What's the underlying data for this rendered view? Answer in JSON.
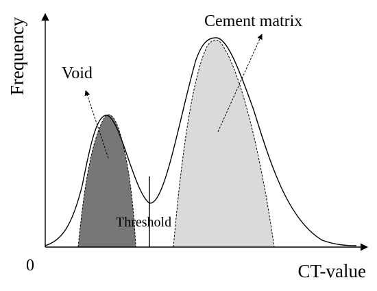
{
  "labels": {
    "y_axis": "Frequency",
    "x_axis": "CT-value",
    "origin": "0",
    "void": "Void",
    "cement": "Cement matrix",
    "threshold": "Threshold"
  },
  "colors": {
    "void_fill": "#777777",
    "cement_fill": "#dadada",
    "line": "#000000"
  }
}
